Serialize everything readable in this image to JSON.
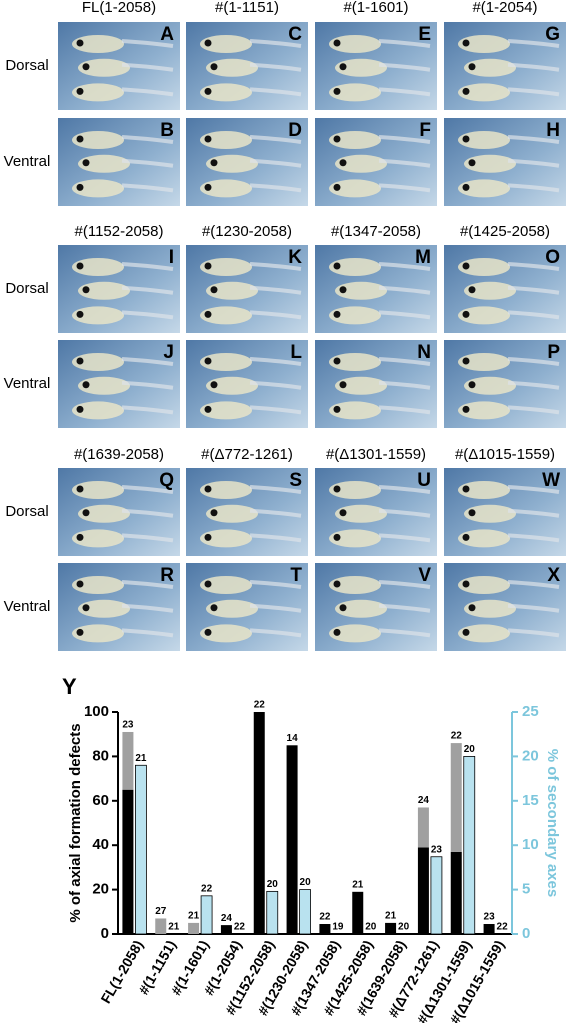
{
  "photo_grid": {
    "groups": [
      {
        "columns": [
          "FL(1-2058)",
          "#(1-1151)",
          "#(1-1601)",
          "#(1-2054)"
        ],
        "rows": [
          "Dorsal",
          "Ventral"
        ],
        "letters": [
          [
            "A",
            "C",
            "E",
            "G"
          ],
          [
            "B",
            "D",
            "F",
            "H"
          ]
        ]
      },
      {
        "columns": [
          "#(1152-2058)",
          "#(1230-2058)",
          "#(1347-2058)",
          "#(1425-2058)"
        ],
        "rows": [
          "Dorsal",
          "Ventral"
        ],
        "letters": [
          [
            "I",
            "K",
            "M",
            "O"
          ],
          [
            "J",
            "L",
            "N",
            "P"
          ]
        ]
      },
      {
        "columns": [
          "#(1639-2058)",
          "#(Δ772-1261)",
          "#(Δ1301-1559)",
          "#(Δ1015-1559)"
        ],
        "rows": [
          "Dorsal",
          "Ventral"
        ],
        "letters": [
          [
            "Q",
            "S",
            "U",
            "W"
          ],
          [
            "R",
            "T",
            "V",
            "X"
          ]
        ]
      }
    ]
  },
  "chart_data": {
    "type": "bar",
    "label": "Y",
    "y_label": "% of axial formation defects",
    "y2_label": "% of secondary axes",
    "categories": [
      "FL(1-2058)",
      "#(1-1151)",
      "#(1-1601)",
      "#(1-2054)",
      "#(1152-2058)",
      "#(1230-2058)",
      "#(1347-2058)",
      "#(1425-2058)",
      "#(1639-2058)",
      "#(Δ772-1261)",
      "#(Δ1301-1559)",
      "#(Δ1015-1559)"
    ],
    "series": [
      {
        "color": "#000000",
        "values": [
          65,
          0,
          0,
          4,
          100,
          85,
          4.5,
          19,
          5,
          39,
          37,
          4.5
        ]
      },
      {
        "color": "#a0a0a0",
        "values": [
          26,
          7,
          5,
          0,
          0,
          0,
          0,
          0,
          0,
          18,
          49,
          0
        ],
        "n": [
          23,
          27,
          21,
          24,
          22,
          14,
          22,
          21,
          21,
          24,
          22,
          23
        ]
      },
      {
        "color": "#b9e2ef",
        "axis": "y2",
        "values": [
          19,
          0,
          4.3,
          0,
          4.8,
          5,
          0,
          0,
          0,
          8.7,
          20,
          0
        ],
        "n": [
          21,
          21,
          22,
          22,
          20,
          20,
          19,
          20,
          20,
          23,
          20,
          22
        ]
      }
    ],
    "ylim": [
      0,
      100
    ],
    "yticks": [
      0,
      20,
      40,
      60,
      80,
      100
    ],
    "y2lim": [
      0,
      25
    ],
    "y2ticks": [
      0,
      5,
      10,
      15,
      20,
      25
    ],
    "y2_color": "#7cc6dc"
  }
}
